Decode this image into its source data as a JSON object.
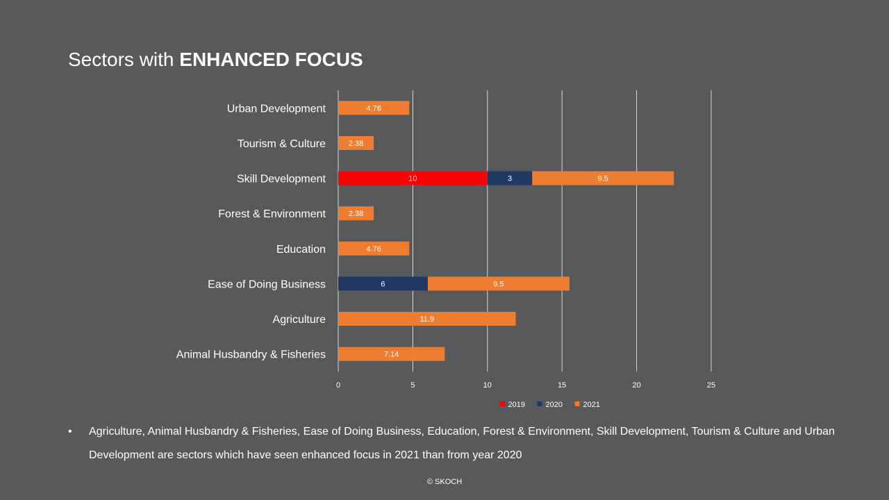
{
  "title": {
    "prefix": "Sectors with",
    "emphasis": "ENHANCED FOCUS"
  },
  "chart_data": {
    "type": "bar",
    "orientation": "horizontal",
    "stacked": true,
    "categories": [
      "Urban Development",
      "Tourism & Culture",
      "Skill Development",
      "Forest & Environment",
      "Education",
      "Ease of Doing Business",
      "Agriculture",
      "Animal Husbandry & Fisheries"
    ],
    "series": [
      {
        "name": "2019",
        "color": "#ff0000",
        "values": [
          0,
          0,
          10,
          0,
          0,
          0,
          0,
          0
        ]
      },
      {
        "name": "2020",
        "color": "#203864",
        "values": [
          0,
          0,
          3,
          0,
          0,
          6,
          0,
          0
        ]
      },
      {
        "name": "2021",
        "color": "#ed7d31",
        "values": [
          4.76,
          2.38,
          9.5,
          2.38,
          4.76,
          9.5,
          11.9,
          7.14
        ]
      }
    ],
    "xlim": [
      0,
      25
    ],
    "xticks": [
      0,
      5,
      10,
      15,
      20,
      25
    ],
    "grid": true,
    "legend": "bottom",
    "data_labels": true
  },
  "bullet": {
    "symbol": "•",
    "text": "Agriculture, Animal Husbandry & Fisheries, Ease of Doing Business, Education, Forest & Environment, Skill Development, Tourism & Culture and Urban Development are sectors which have seen enhanced focus in 2021 than from year 2020"
  },
  "footer": "© SKOCH"
}
